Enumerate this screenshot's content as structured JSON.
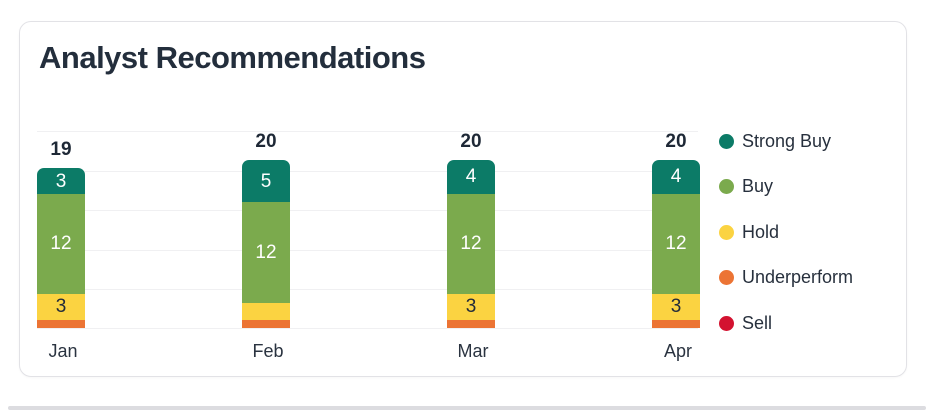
{
  "card": {
    "title": "Analyst Recommendations"
  },
  "chart_data": {
    "type": "bar",
    "subtype": "stacked-column",
    "title": "Analyst Recommendations",
    "categories": [
      "Jan",
      "Feb",
      "Mar",
      "Apr"
    ],
    "series": [
      {
        "name": "Strong Buy",
        "color": "#0c7b67",
        "label_color": "#ffffff",
        "values": [
          3,
          5,
          4,
          4
        ]
      },
      {
        "name": "Buy",
        "color": "#7baa4d",
        "label_color": "#ffffff",
        "values": [
          12,
          12,
          12,
          12
        ]
      },
      {
        "name": "Hold",
        "color": "#fbd341",
        "label_color": "#222b3a",
        "values": [
          3,
          2,
          3,
          3
        ]
      },
      {
        "name": "Underperform",
        "color": "#ec7434",
        "label_color": "#ffffff",
        "values": [
          1,
          1,
          1,
          1
        ]
      },
      {
        "name": "Sell",
        "color": "#d31230",
        "label_color": "#ffffff",
        "values": [
          0,
          0,
          0,
          0
        ]
      }
    ],
    "totals": [
      19,
      20,
      20,
      20
    ],
    "xlabel": "",
    "ylabel": "",
    "y_axis_labels_visible": false,
    "gridlines": 6,
    "grid_color": "#f0f0f2",
    "legend_position": "right",
    "segment_label_min_value": 3
  },
  "colors": {
    "title_text": "#232e3c",
    "axis_text": "#2a3340",
    "total_text": "#1e2836",
    "card_border": "#e2e2e6",
    "divider": "#dcdce0"
  }
}
